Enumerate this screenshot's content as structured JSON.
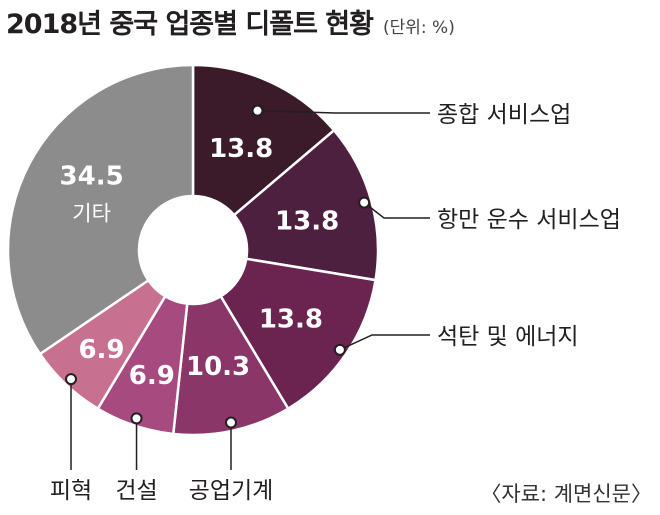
{
  "title": "2018년 중국 업종별 디폴트 현황",
  "unit": "(단위: %)",
  "source": "〈자료: 계면신문〉",
  "chart_data": {
    "type": "pie",
    "title": "2018년 중국 업종별 디폴트 현황",
    "unit": "(단위: %)",
    "donut": true,
    "categories": [
      "종합 서비스업",
      "항만 운수 서비스업",
      "석탄 및 에너지",
      "공업기계",
      "건설",
      "피혁",
      "기타"
    ],
    "values": [
      13.8,
      13.8,
      13.8,
      10.3,
      6.9,
      6.9,
      34.5
    ],
    "colors": [
      "#3b1a2a",
      "#4e2040",
      "#6b2450",
      "#8a3668",
      "#a74a80",
      "#c7708f",
      "#8c8c8c"
    ],
    "slice_label_inside": [
      "",
      "",
      "",
      "",
      "",
      "",
      "기타"
    ]
  }
}
